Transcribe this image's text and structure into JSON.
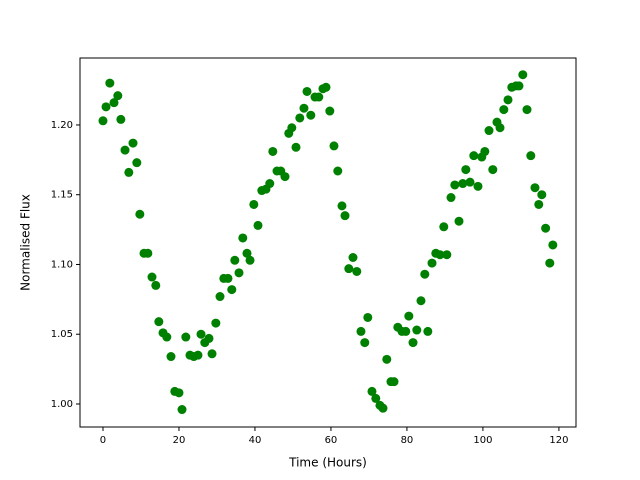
{
  "chart_data": {
    "type": "scatter",
    "color": "#008000",
    "x_label": "Time (Hours)",
    "y_label": "Normalised Flux",
    "x": [
      0,
      0.8,
      1.8,
      2.9,
      3.9,
      4.7,
      5.8,
      6.8,
      7.9,
      8.9,
      9.7,
      10.8,
      11.8,
      12.9,
      13.9,
      14.7,
      15.8,
      16.8,
      17.9,
      18.9,
      20.0,
      20.8,
      21.8,
      22.9,
      23.9,
      25.0,
      25.8,
      26.8,
      27.9,
      28.7,
      29.7,
      30.8,
      31.8,
      32.9,
      33.9,
      34.7,
      35.8,
      36.8,
      37.9,
      38.7,
      39.7,
      40.8,
      41.8,
      42.9,
      43.9,
      44.7,
      45.8,
      46.8,
      47.9,
      48.9,
      49.7,
      50.8,
      51.8,
      52.9,
      53.7,
      54.7,
      55.8,
      56.8,
      57.9,
      58.7,
      59.7,
      60.8,
      61.8,
      62.9,
      63.7,
      64.7,
      65.8,
      66.8,
      67.9,
      68.9,
      69.7,
      70.8,
      71.8,
      72.9,
      73.7,
      74.7,
      75.8,
      76.6,
      77.6,
      78.7,
      79.7,
      80.5,
      81.6,
      82.6,
      83.7,
      84.7,
      85.5,
      86.6,
      87.6,
      88.7,
      89.7,
      90.5,
      91.6,
      92.6,
      93.7,
      94.7,
      95.5,
      96.6,
      97.6,
      98.7,
      99.7,
      100.5,
      101.6,
      102.6,
      103.7,
      104.5,
      105.5,
      106.6,
      107.6,
      108.7,
      109.5,
      110.5,
      111.6,
      112.6,
      113.7,
      114.7,
      115.5,
      116.5,
      117.6,
      118.4
    ],
    "values": [
      1.203,
      1.213,
      1.23,
      1.216,
      1.221,
      1.204,
      1.182,
      1.166,
      1.187,
      1.173,
      1.136,
      1.108,
      1.108,
      1.091,
      1.085,
      1.059,
      1.051,
      1.048,
      1.034,
      1.009,
      1.008,
      0.996,
      1.048,
      1.035,
      1.034,
      1.035,
      1.05,
      1.044,
      1.047,
      1.036,
      1.058,
      1.077,
      1.09,
      1.09,
      1.082,
      1.103,
      1.094,
      1.119,
      1.108,
      1.103,
      1.143,
      1.128,
      1.153,
      1.154,
      1.158,
      1.181,
      1.167,
      1.167,
      1.163,
      1.194,
      1.198,
      1.184,
      1.205,
      1.212,
      1.224,
      1.207,
      1.22,
      1.22,
      1.226,
      1.227,
      1.21,
      1.185,
      1.167,
      1.142,
      1.135,
      1.097,
      1.105,
      1.095,
      1.052,
      1.044,
      1.062,
      1.009,
      1.004,
      0.999,
      0.997,
      1.032,
      1.016,
      1.016,
      1.055,
      1.052,
      1.052,
      1.063,
      1.044,
      1.053,
      1.074,
      1.093,
      1.052,
      1.101,
      1.108,
      1.107,
      1.127,
      1.107,
      1.148,
      1.157,
      1.131,
      1.158,
      1.168,
      1.159,
      1.178,
      1.156,
      1.177,
      1.181,
      1.196,
      1.168,
      1.202,
      1.198,
      1.211,
      1.218,
      1.227,
      1.228,
      1.228,
      1.236,
      1.211,
      1.178,
      1.155,
      1.143,
      1.15,
      1.126,
      1.101,
      1.114
    ],
    "xlim": [
      -6.05,
      124.5
    ],
    "ylim": [
      0.9835,
      1.248
    ],
    "xticks": [
      0,
      20,
      40,
      60,
      80,
      100,
      120
    ],
    "yticks": [
      {
        "value": 1.0,
        "label": "1.00"
      },
      {
        "value": 1.05,
        "label": "1.05"
      },
      {
        "value": 1.1,
        "label": "1.10"
      },
      {
        "value": 1.15,
        "label": "1.15"
      },
      {
        "value": 1.2,
        "label": "1.20"
      }
    ]
  }
}
